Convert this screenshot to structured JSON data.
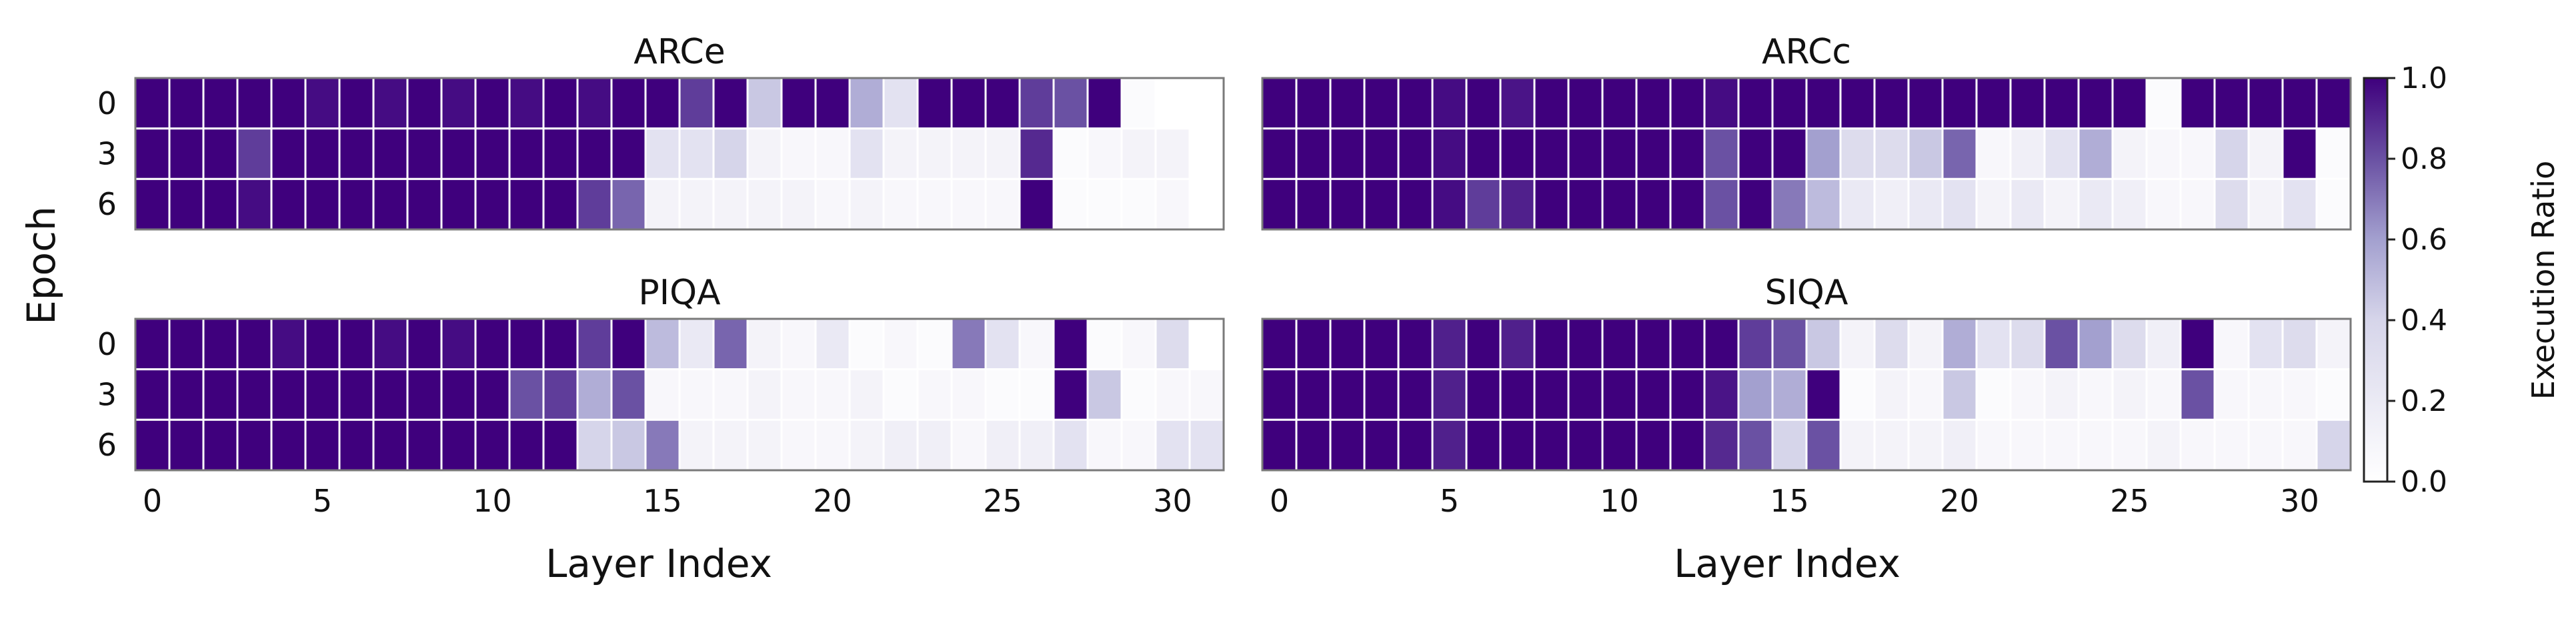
{
  "chart_data": {
    "type": "heatmap",
    "xlabel": "Layer Index",
    "ylabel": "Epoch",
    "x_ticks": [
      0,
      5,
      10,
      15,
      20,
      25,
      30
    ],
    "y_categories": [
      "0",
      "3",
      "6"
    ],
    "layers": 32,
    "colormap": {
      "low": "#ffffff",
      "mid": "#b9b6dc",
      "high": "#3f007d"
    },
    "colorbar": {
      "label": "Execution Ratio",
      "min": 0.0,
      "max": 1.0,
      "ticks": [
        "0.0",
        "0.2",
        "0.4",
        "0.6",
        "0.8",
        "1.0"
      ]
    },
    "panels": [
      {
        "title": "ARCe",
        "values": [
          [
            1.0,
            1.0,
            1.0,
            1.0,
            1.0,
            0.97,
            1.0,
            0.97,
            1.0,
            0.97,
            1.0,
            0.97,
            1.0,
            0.97,
            1.0,
            1.0,
            0.85,
            1.0,
            0.45,
            1.0,
            1.0,
            0.55,
            0.3,
            1.0,
            1.0,
            1.0,
            0.85,
            0.8,
            1.0,
            0.05,
            0.0,
            0.0
          ],
          [
            1.0,
            1.0,
            1.0,
            0.85,
            1.0,
            1.0,
            1.0,
            1.0,
            1.0,
            1.0,
            1.0,
            1.0,
            1.0,
            1.0,
            1.0,
            0.3,
            0.3,
            0.4,
            0.15,
            0.1,
            0.1,
            0.3,
            0.15,
            0.15,
            0.15,
            0.15,
            0.9,
            0.05,
            0.1,
            0.15,
            0.15,
            0.0
          ],
          [
            1.0,
            1.0,
            1.0,
            0.97,
            1.0,
            1.0,
            1.0,
            1.0,
            1.0,
            1.0,
            1.0,
            1.0,
            1.0,
            0.85,
            0.75,
            0.15,
            0.15,
            0.15,
            0.15,
            0.15,
            0.1,
            0.15,
            0.1,
            0.1,
            0.1,
            0.1,
            1.0,
            0.05,
            0.05,
            0.05,
            0.1,
            0.0
          ]
        ]
      },
      {
        "title": "ARCc",
        "values": [
          [
            1.0,
            1.0,
            1.0,
            1.0,
            1.0,
            0.97,
            1.0,
            0.95,
            1.0,
            1.0,
            1.0,
            1.0,
            1.0,
            0.97,
            1.0,
            1.0,
            1.0,
            1.0,
            1.0,
            1.0,
            1.0,
            1.0,
            1.0,
            1.0,
            1.0,
            1.0,
            0.05,
            1.0,
            1.0,
            1.0,
            1.0,
            1.0
          ],
          [
            1.0,
            1.0,
            1.0,
            1.0,
            1.0,
            0.97,
            1.0,
            1.0,
            1.0,
            1.0,
            1.0,
            1.0,
            1.0,
            0.8,
            1.0,
            1.0,
            0.6,
            0.35,
            0.35,
            0.45,
            0.75,
            0.1,
            0.2,
            0.3,
            0.55,
            0.15,
            0.1,
            0.1,
            0.4,
            0.15,
            1.0,
            0.05
          ],
          [
            1.0,
            1.0,
            1.0,
            1.0,
            1.0,
            0.97,
            0.85,
            0.92,
            1.0,
            1.0,
            1.0,
            1.0,
            1.0,
            0.8,
            1.0,
            0.7,
            0.5,
            0.25,
            0.2,
            0.25,
            0.3,
            0.15,
            0.25,
            0.15,
            0.25,
            0.2,
            0.1,
            0.1,
            0.35,
            0.15,
            0.3,
            0.05
          ]
        ]
      },
      {
        "title": "PIQA",
        "values": [
          [
            1.0,
            1.0,
            1.0,
            1.0,
            0.97,
            1.0,
            1.0,
            0.97,
            1.0,
            0.97,
            1.0,
            1.0,
            1.0,
            0.85,
            1.0,
            0.5,
            0.25,
            0.75,
            0.15,
            0.1,
            0.25,
            0.05,
            0.1,
            0.05,
            0.7,
            0.3,
            0.1,
            1.0,
            0.05,
            0.1,
            0.35,
            0.0
          ],
          [
            1.0,
            1.0,
            1.0,
            1.0,
            1.0,
            1.0,
            1.0,
            1.0,
            1.0,
            1.0,
            1.0,
            0.8,
            0.85,
            0.55,
            0.8,
            0.1,
            0.1,
            0.1,
            0.15,
            0.1,
            0.1,
            0.15,
            0.05,
            0.1,
            0.1,
            0.05,
            0.05,
            1.0,
            0.45,
            0.05,
            0.1,
            0.1
          ],
          [
            1.0,
            1.0,
            1.0,
            1.0,
            1.0,
            1.0,
            1.0,
            1.0,
            1.0,
            1.0,
            1.0,
            1.0,
            1.0,
            0.4,
            0.45,
            0.7,
            0.15,
            0.15,
            0.15,
            0.1,
            0.1,
            0.15,
            0.2,
            0.2,
            0.1,
            0.2,
            0.2,
            0.3,
            0.1,
            0.1,
            0.3,
            0.3
          ]
        ]
      },
      {
        "title": "SIQA",
        "values": [
          [
            1.0,
            1.0,
            1.0,
            1.0,
            1.0,
            0.92,
            1.0,
            0.92,
            1.0,
            1.0,
            1.0,
            1.0,
            1.0,
            1.0,
            0.85,
            0.8,
            0.45,
            0.15,
            0.35,
            0.15,
            0.55,
            0.3,
            0.35,
            0.8,
            0.6,
            0.35,
            0.2,
            1.0,
            0.1,
            0.3,
            0.35,
            0.15
          ],
          [
            1.0,
            1.0,
            1.0,
            1.0,
            1.0,
            0.92,
            1.0,
            1.0,
            1.0,
            1.0,
            1.0,
            1.0,
            1.0,
            0.95,
            0.6,
            0.55,
            1.0,
            0.05,
            0.15,
            0.1,
            0.45,
            0.05,
            0.1,
            0.15,
            0.1,
            0.15,
            0.1,
            0.8,
            0.1,
            0.1,
            0.1,
            0.05
          ],
          [
            1.0,
            1.0,
            1.0,
            1.0,
            1.0,
            0.92,
            1.0,
            1.0,
            1.0,
            1.0,
            1.0,
            1.0,
            1.0,
            0.9,
            0.8,
            0.4,
            0.8,
            0.15,
            0.15,
            0.15,
            0.2,
            0.1,
            0.1,
            0.1,
            0.1,
            0.1,
            0.15,
            0.1,
            0.1,
            0.1,
            0.1,
            0.4
          ]
        ]
      }
    ]
  }
}
